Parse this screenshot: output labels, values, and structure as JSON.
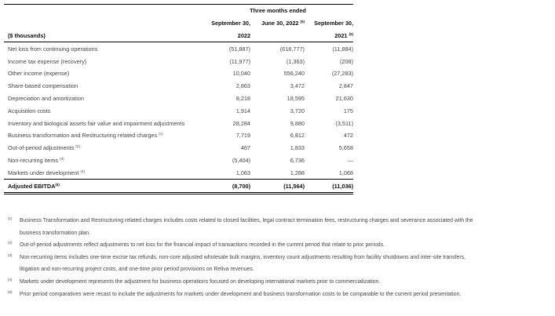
{
  "table": {
    "group_header": "Three months ended",
    "unit_label": "($ thousands)",
    "columns": [
      {
        "line1": "September 30,",
        "line2": "2022",
        "note": ""
      },
      {
        "line1": "June 30, 2022",
        "line2": "",
        "note": "(5)"
      },
      {
        "line1": "September 30,",
        "line2": "2021",
        "note": "(5)"
      }
    ],
    "rows": [
      {
        "label": "Net loss from continuing operations",
        "note": "",
        "values": [
          "(51,887)",
          "(618,777)",
          "(11,884)"
        ]
      },
      {
        "label": "Income tax expense (recovery)",
        "note": "",
        "values": [
          "(11,977)",
          "(1,363)",
          "(208)"
        ]
      },
      {
        "label": "Other income (expense)",
        "note": "",
        "values": [
          "10,040",
          "556,240",
          "(27,283)"
        ]
      },
      {
        "label": "Share-based compensation",
        "note": "",
        "values": [
          "2,863",
          "3,472",
          "2,847"
        ]
      },
      {
        "label": "Depreciation and amortization",
        "note": "",
        "values": [
          "8,218",
          "18,595",
          "21,630"
        ]
      },
      {
        "label": "Acquisition costs",
        "note": "",
        "values": [
          "1,914",
          "3,720",
          "175"
        ]
      },
      {
        "label": "Inventory and biological assets fair value and impairment adjustments",
        "note": "",
        "values": [
          "28,284",
          "9,880",
          "(3,511)"
        ]
      },
      {
        "label": "Business transformation and Restructuring related charges",
        "note": "(1)",
        "values": [
          "7,719",
          "6,812",
          "472"
        ]
      },
      {
        "label": "Out-of-period adjustments",
        "note": "(2)",
        "values": [
          "467",
          "1,833",
          "5,658"
        ]
      },
      {
        "label": "Non-recurring items",
        "note": "(3)",
        "values": [
          "(5,404)",
          "6,736",
          "—"
        ]
      },
      {
        "label": "Markets under development",
        "note": "(4)",
        "values": [
          "1,063",
          "1,288",
          "1,068"
        ]
      }
    ],
    "total": {
      "label": "Adjusted EBITDA",
      "note": "(5)",
      "values": [
        "(8,700)",
        "(11,564)",
        "(11,036)"
      ]
    }
  },
  "footnotes": [
    {
      "marker": "(1)",
      "lines": [
        "Business Transformation and Restructuring related charges includes costs related to closed facilities, legal contract termination fees, restructuring charges and severance associated with the",
        "business transformation plan."
      ]
    },
    {
      "marker": "(2)",
      "lines": [
        "Out-of-period adjustments reflect adjustments to net loss for the financial impact of transactions recorded in the current period that relate to prior periods."
      ]
    },
    {
      "marker": "(3)",
      "lines": [
        "Non-recurring items includes one-time excise tax refunds, non-core adjusted wholesale bulk margins, inventory count adjustments resulting from facility shutdowns and inter-site transfers,",
        "litigation and non-recurring project costs, and one-time prior period provisions on Reliva revenues."
      ]
    },
    {
      "marker": "(4)",
      "lines": [
        "Markets under development represents the adjustment for business operations focused on developing international markets prior to commercialization."
      ]
    },
    {
      "marker": "(5)",
      "lines": [
        "Prior period comparatives were recast to include the adjustments for markets under development and business transformation costs to be comparable to the current period presentation."
      ]
    }
  ]
}
